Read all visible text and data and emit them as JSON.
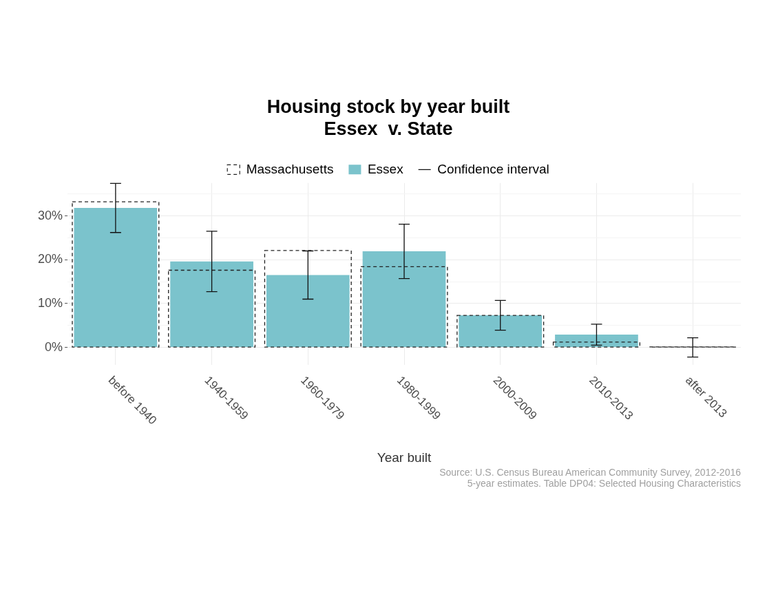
{
  "chart_data": {
    "type": "bar",
    "title": "Housing stock by year built\nEssex  v. State",
    "xlabel": "Year built",
    "categories": [
      "before 1940",
      "1940-1959",
      "1960-1979",
      "1980-1999",
      "2000-2009",
      "2010-2013",
      "after 2013"
    ],
    "series": [
      {
        "name": "Essex",
        "color": "#7bc3cc",
        "values": [
          31.8,
          19.6,
          16.5,
          21.9,
          7.3,
          2.9,
          0
        ],
        "errors": [
          5.6,
          6.9,
          5.5,
          6.2,
          3.4,
          2.4,
          2.2
        ]
      },
      {
        "name": "Massachusetts",
        "color": "#222222",
        "line_style": "dashed",
        "values": [
          33.2,
          17.6,
          22.1,
          18.4,
          7.3,
          1.2,
          0.1
        ]
      }
    ],
    "ylim": [
      -4,
      37.5
    ],
    "yticks": [
      {
        "value": 0,
        "label": "0%"
      },
      {
        "value": 5,
        "label": null
      },
      {
        "value": 10,
        "label": "10%"
      },
      {
        "value": 15,
        "label": null
      },
      {
        "value": 20,
        "label": "20%"
      },
      {
        "value": 25,
        "label": null
      },
      {
        "value": 30,
        "label": "30%"
      },
      {
        "value": 35,
        "label": null
      }
    ],
    "grid": true,
    "legend": "top",
    "annotations": [
      "Confidence interval",
      "Source: U.S. Census Bureau American Community Survey, 2012-2016\n5-year estimates. Table DP04: Selected Housing Characteristics"
    ]
  }
}
